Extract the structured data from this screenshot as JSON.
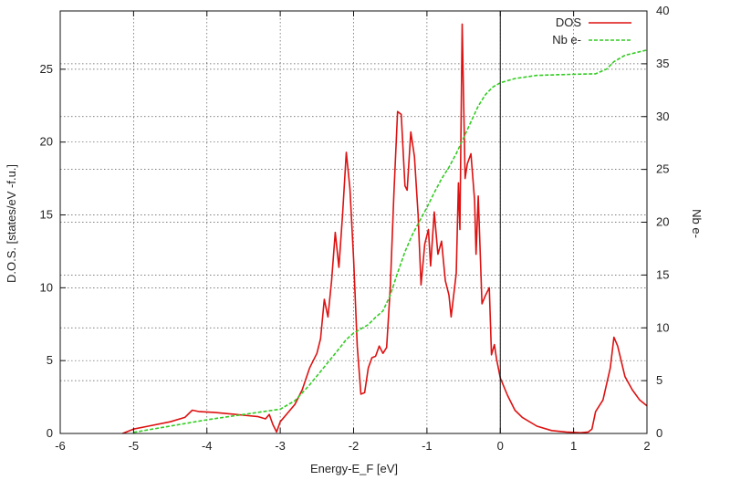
{
  "chart_data": {
    "type": "line",
    "xlabel": "Energy-E_F [eV]",
    "ylabel": "D.O.S. [states/eV -f.u.]",
    "y2label": "Nb e-",
    "xlim": [
      -6,
      2
    ],
    "ylim": [
      0,
      29
    ],
    "y2lim": [
      0,
      40
    ],
    "x_ticks": [
      -6,
      -5,
      -4,
      -3,
      -2,
      -1,
      0,
      1,
      2
    ],
    "y_ticks": [
      0,
      5,
      10,
      15,
      20,
      25
    ],
    "y2_ticks": [
      0,
      5,
      10,
      15,
      20,
      25,
      30,
      35,
      40
    ],
    "grid": true,
    "legend_position": "top-right",
    "fermi_line_x": 0,
    "series": [
      {
        "name": "DOS",
        "axis": "left",
        "color": "#dd1111",
        "style": "solid",
        "points": [
          [
            -5.15,
            0
          ],
          [
            -5.0,
            0.3
          ],
          [
            -4.8,
            0.5
          ],
          [
            -4.5,
            0.8
          ],
          [
            -4.3,
            1.1
          ],
          [
            -4.2,
            1.6
          ],
          [
            -4.1,
            1.5
          ],
          [
            -3.9,
            1.45
          ],
          [
            -3.7,
            1.35
          ],
          [
            -3.5,
            1.25
          ],
          [
            -3.3,
            1.15
          ],
          [
            -3.2,
            1.0
          ],
          [
            -3.15,
            1.3
          ],
          [
            -3.1,
            0.6
          ],
          [
            -3.05,
            0.1
          ],
          [
            -3.0,
            0.8
          ],
          [
            -2.9,
            1.4
          ],
          [
            -2.8,
            2.0
          ],
          [
            -2.7,
            3.0
          ],
          [
            -2.6,
            4.5
          ],
          [
            -2.5,
            5.5
          ],
          [
            -2.45,
            6.5
          ],
          [
            -2.4,
            9.2
          ],
          [
            -2.35,
            8.0
          ],
          [
            -2.3,
            10.5
          ],
          [
            -2.25,
            13.8
          ],
          [
            -2.2,
            11.4
          ],
          [
            -2.15,
            15.0
          ],
          [
            -2.1,
            19.3
          ],
          [
            -2.05,
            16.8
          ],
          [
            -2.0,
            12.0
          ],
          [
            -1.95,
            6.0
          ],
          [
            -1.9,
            2.7
          ],
          [
            -1.85,
            2.8
          ],
          [
            -1.8,
            4.5
          ],
          [
            -1.75,
            5.2
          ],
          [
            -1.7,
            5.3
          ],
          [
            -1.65,
            6.0
          ],
          [
            -1.6,
            5.5
          ],
          [
            -1.55,
            5.9
          ],
          [
            -1.5,
            10.0
          ],
          [
            -1.45,
            16.5
          ],
          [
            -1.4,
            22.1
          ],
          [
            -1.35,
            21.9
          ],
          [
            -1.3,
            17.0
          ],
          [
            -1.27,
            16.7
          ],
          [
            -1.22,
            20.7
          ],
          [
            -1.17,
            19.0
          ],
          [
            -1.12,
            15.0
          ],
          [
            -1.08,
            10.2
          ],
          [
            -1.03,
            13.0
          ],
          [
            -0.98,
            14.0
          ],
          [
            -0.95,
            11.5
          ],
          [
            -0.9,
            15.2
          ],
          [
            -0.85,
            12.3
          ],
          [
            -0.8,
            13.2
          ],
          [
            -0.75,
            10.5
          ],
          [
            -0.7,
            9.5
          ],
          [
            -0.67,
            8.0
          ],
          [
            -0.6,
            11.0
          ],
          [
            -0.57,
            17.2
          ],
          [
            -0.55,
            14.0
          ],
          [
            -0.52,
            28.1
          ],
          [
            -0.48,
            17.5
          ],
          [
            -0.45,
            18.5
          ],
          [
            -0.4,
            19.2
          ],
          [
            -0.35,
            16.0
          ],
          [
            -0.33,
            12.3
          ],
          [
            -0.3,
            16.3
          ],
          [
            -0.25,
            8.9
          ],
          [
            -0.2,
            9.5
          ],
          [
            -0.15,
            10.0
          ],
          [
            -0.12,
            5.4
          ],
          [
            -0.08,
            6.1
          ],
          [
            -0.05,
            5.1
          ],
          [
            0.0,
            3.8
          ],
          [
            0.1,
            2.6
          ],
          [
            0.2,
            1.6
          ],
          [
            0.3,
            1.1
          ],
          [
            0.5,
            0.5
          ],
          [
            0.7,
            0.2
          ],
          [
            0.9,
            0.1
          ],
          [
            1.1,
            0.05
          ],
          [
            1.2,
            0.1
          ],
          [
            1.25,
            0.3
          ],
          [
            1.3,
            1.5
          ],
          [
            1.4,
            2.3
          ],
          [
            1.5,
            4.5
          ],
          [
            1.55,
            6.6
          ],
          [
            1.6,
            6.0
          ],
          [
            1.7,
            3.9
          ],
          [
            1.8,
            3.0
          ],
          [
            1.9,
            2.3
          ],
          [
            2.0,
            1.9
          ]
        ]
      },
      {
        "name": "Nb e-",
        "axis": "right",
        "color": "#33cc22",
        "style": "dashed",
        "points": [
          [
            -5.0,
            0.1
          ],
          [
            -4.5,
            0.7
          ],
          [
            -4.0,
            1.3
          ],
          [
            -3.5,
            1.8
          ],
          [
            -3.2,
            2.1
          ],
          [
            -3.0,
            2.3
          ],
          [
            -2.8,
            3.1
          ],
          [
            -2.6,
            4.6
          ],
          [
            -2.4,
            6.3
          ],
          [
            -2.2,
            8.0
          ],
          [
            -2.1,
            8.9
          ],
          [
            -2.0,
            9.5
          ],
          [
            -1.9,
            9.9
          ],
          [
            -1.8,
            10.3
          ],
          [
            -1.7,
            11.0
          ],
          [
            -1.6,
            11.6
          ],
          [
            -1.5,
            13.1
          ],
          [
            -1.4,
            15.2
          ],
          [
            -1.3,
            17.2
          ],
          [
            -1.2,
            18.8
          ],
          [
            -1.1,
            20.1
          ],
          [
            -1.0,
            21.4
          ],
          [
            -0.9,
            22.8
          ],
          [
            -0.8,
            24.1
          ],
          [
            -0.7,
            25.2
          ],
          [
            -0.6,
            26.5
          ],
          [
            -0.5,
            28.0
          ],
          [
            -0.4,
            29.5
          ],
          [
            -0.3,
            31.0
          ],
          [
            -0.2,
            32.1
          ],
          [
            -0.1,
            32.8
          ],
          [
            0.0,
            33.2
          ],
          [
            0.2,
            33.6
          ],
          [
            0.5,
            33.9
          ],
          [
            1.0,
            34.0
          ],
          [
            1.3,
            34.05
          ],
          [
            1.45,
            34.5
          ],
          [
            1.55,
            35.2
          ],
          [
            1.7,
            35.8
          ],
          [
            2.0,
            36.3
          ]
        ]
      }
    ]
  }
}
